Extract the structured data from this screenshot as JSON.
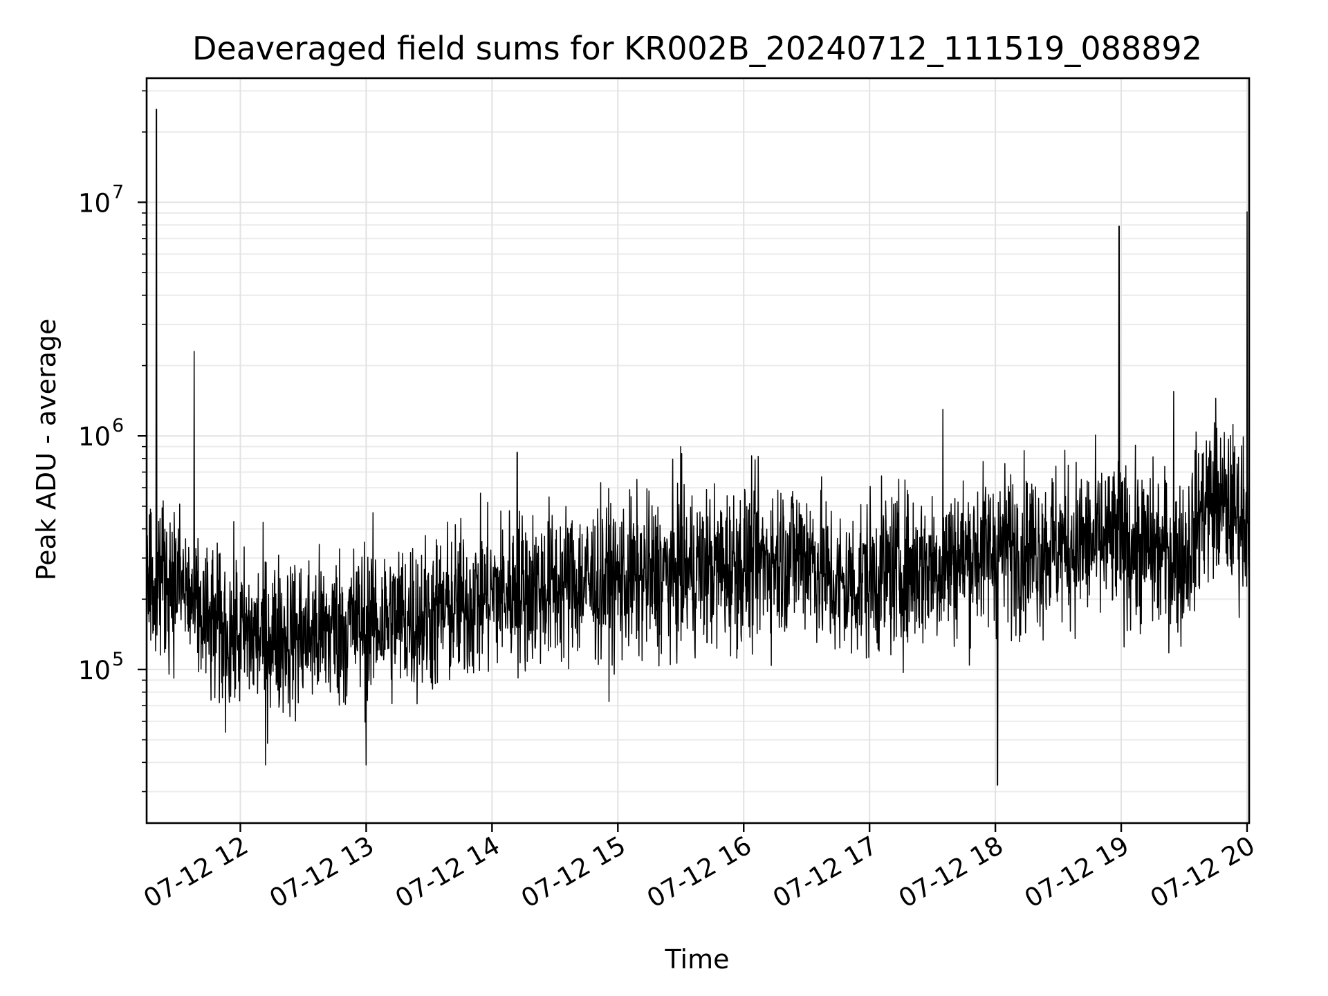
{
  "chart_data": {
    "type": "line",
    "title": "Deaveraged field sums for KR002B_20240712_111519_088892",
    "xlabel": "Time",
    "ylabel": "Peak ADU - average",
    "yscale": "log",
    "grid": true,
    "x_range": [
      "2024-07-12 11:15:19",
      "2024-07-12 20:01:00"
    ],
    "ylim": [
      22000,
      34000000
    ],
    "x_ticks": [
      {
        "at": "2024-07-12 12:00",
        "label": "07-12 12"
      },
      {
        "at": "2024-07-12 13:00",
        "label": "07-12 13"
      },
      {
        "at": "2024-07-12 14:00",
        "label": "07-12 14"
      },
      {
        "at": "2024-07-12 15:00",
        "label": "07-12 15"
      },
      {
        "at": "2024-07-12 16:00",
        "label": "07-12 16"
      },
      {
        "at": "2024-07-12 17:00",
        "label": "07-12 17"
      },
      {
        "at": "2024-07-12 18:00",
        "label": "07-12 18"
      },
      {
        "at": "2024-07-12 19:00",
        "label": "07-12 19"
      },
      {
        "at": "2024-07-12 20:00",
        "label": "07-12 20"
      }
    ],
    "y_ticks": [
      {
        "value": 100000,
        "base": "10",
        "exp": "5"
      },
      {
        "value": 1000000,
        "base": "10",
        "exp": "6"
      },
      {
        "value": 10000000,
        "base": "10",
        "exp": "7"
      }
    ],
    "series_color": "#000000",
    "baseline": {
      "time": [
        "2024-07-12 11:15",
        "2024-07-12 11:30",
        "2024-07-12 11:45",
        "2024-07-12 12:00",
        "2024-07-12 12:30",
        "2024-07-12 13:00",
        "2024-07-12 13:30",
        "2024-07-12 14:00",
        "2024-07-12 14:30",
        "2024-07-12 15:00",
        "2024-07-12 15:30",
        "2024-07-12 16:00",
        "2024-07-12 16:30",
        "2024-07-12 16:45",
        "2024-07-12 17:00",
        "2024-07-12 17:30",
        "2024-07-12 18:00",
        "2024-07-12 18:30",
        "2024-07-12 19:00",
        "2024-07-12 19:30",
        "2024-07-12 19:40",
        "2024-07-12 19:50",
        "2024-07-12 20:00"
      ],
      "value": [
        260000,
        240000,
        150000,
        140000,
        140000,
        160000,
        170000,
        210000,
        230000,
        240000,
        260000,
        280000,
        320000,
        220000,
        250000,
        280000,
        330000,
        340000,
        350000,
        300000,
        530000,
        500000,
        450000
      ]
    },
    "spikes": [
      {
        "time": "2024-07-12 11:20",
        "value": 25000000
      },
      {
        "time": "2024-07-12 11:38",
        "value": 2300000
      },
      {
        "time": "2024-07-12 14:12",
        "value": 850000
      },
      {
        "time": "2024-07-12 15:30",
        "value": 900000
      },
      {
        "time": "2024-07-12 17:35",
        "value": 1300000
      },
      {
        "time": "2024-07-12 18:01",
        "value": 32000
      },
      {
        "time": "2024-07-12 18:59",
        "value": 7900000
      },
      {
        "time": "2024-07-12 19:25",
        "value": 1550000
      },
      {
        "time": "2024-07-12 19:45",
        "value": 1450000
      },
      {
        "time": "2024-07-12 20:00",
        "value": 9100000
      },
      {
        "time": "2024-07-12 13:00",
        "value": 39000
      },
      {
        "time": "2024-07-12 12:12",
        "value": 39000
      }
    ]
  }
}
